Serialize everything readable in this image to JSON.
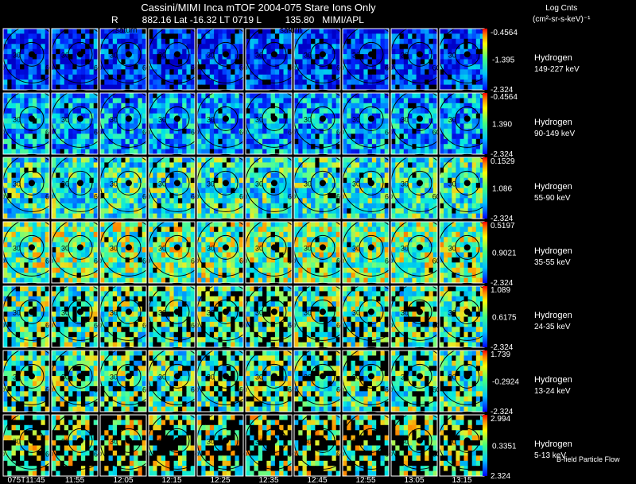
{
  "header": {
    "title": "Cassini/MIMI Inca mTOF  2004-075    Stare    Ions Only",
    "subtitle": "R         882.16 Lat -16.32 LT 0719 L         135.80   MIMI/APL",
    "units_label_1": "Log Cnts",
    "units_label_2": "(cm²-sr-s-keV)⁻¹",
    "footnote": "B-field Particle Flow"
  },
  "chart_data": {
    "type": "heatmap",
    "title": "Cassini/MIMI Inca mTOF  2004-075    Stare    Ions Only",
    "time_labels": [
      "075T11:45",
      "11:55",
      "12:05",
      "12:15",
      "12:25",
      "12:35",
      "12:45",
      "12:55",
      "13:05",
      "13:15"
    ],
    "ring_labels": [
      "30",
      "60"
    ],
    "saturn_labels": [
      "saturn",
      "saturn"
    ],
    "colormap": [
      "#000080",
      "#0000ff",
      "#0080ff",
      "#00ffff",
      "#80ff80",
      "#ffff00",
      "#ff8000",
      "#ff0000"
    ],
    "rows": [
      {
        "species": "Hydrogen",
        "energy": "149-227 keV",
        "cmax": "-0.4564",
        "cmid": "-1.395",
        "cmin": "-2.324",
        "level": 0.15
      },
      {
        "species": "Hydrogen",
        "energy": "90-149 keV",
        "cmax": "-0.4564",
        "cmid": "1.390",
        "cmin": "-2.324",
        "level": 0.32
      },
      {
        "species": "Hydrogen",
        "energy": "55-90 keV",
        "cmax": "0.1529",
        "cmid": "1.086",
        "cmin": "-2.324",
        "level": 0.5
      },
      {
        "species": "Hydrogen",
        "energy": "35-55 keV",
        "cmax": "0.5197",
        "cmid": "0.9021",
        "cmin": "-2.324",
        "level": 0.6
      },
      {
        "species": "Hydrogen",
        "energy": "24-35 keV",
        "cmax": "1.089",
        "cmid": "0.6175",
        "cmin": "-2.324",
        "level": 0.55
      },
      {
        "species": "Hydrogen",
        "energy": "13-24 keV",
        "cmax": "1.739",
        "cmid": "-0.2924",
        "cmin": "-2.324",
        "level": 0.55
      },
      {
        "species": "Hydrogen",
        "energy": "5-13 keV",
        "cmax": "2.994",
        "cmid": "0.3351",
        "cmin": "2.324",
        "level": 0.62
      }
    ]
  }
}
